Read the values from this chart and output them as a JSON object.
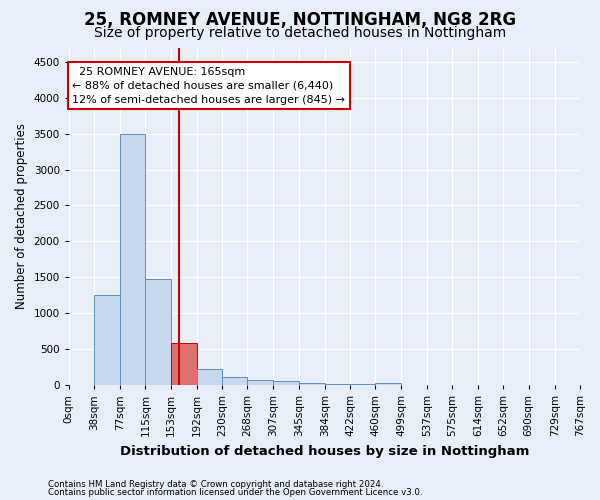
{
  "title": "25, ROMNEY AVENUE, NOTTINGHAM, NG8 2RG",
  "subtitle": "Size of property relative to detached houses in Nottingham",
  "xlabel": "Distribution of detached houses by size in Nottingham",
  "ylabel": "Number of detached properties",
  "footer_line1": "Contains HM Land Registry data © Crown copyright and database right 2024.",
  "footer_line2": "Contains public sector information licensed under the Open Government Licence v3.0.",
  "bins": [
    0,
    38,
    77,
    115,
    153,
    192,
    230,
    268,
    307,
    345,
    384,
    422,
    460,
    499,
    537,
    575,
    614,
    652,
    690,
    729,
    767
  ],
  "bar_heights": [
    5,
    1250,
    3500,
    1480,
    580,
    220,
    110,
    75,
    50,
    30,
    20,
    10,
    25,
    0,
    0,
    0,
    0,
    0,
    0,
    0
  ],
  "bar_color": "#c8d8ec",
  "bar_edge_color": "#6090b8",
  "highlight_bar_color": "#e07070",
  "highlight_bar_edge_color": "#cc0000",
  "vline_x": 165,
  "vline_color": "#cc0000",
  "annotation_text": "  25 ROMNEY AVENUE: 165sqm  \n← 88% of detached houses are smaller (6,440)\n12% of semi-detached houses are larger (845) →",
  "annotation_box_color": "#ffffff",
  "annotation_box_edge_color": "#cc0000",
  "ylim": [
    0,
    4700
  ],
  "yticks": [
    0,
    500,
    1000,
    1500,
    2000,
    2500,
    3000,
    3500,
    4000,
    4500
  ],
  "bg_color": "#e8eef8",
  "plot_bg_color": "#e8eef8",
  "grid_color": "#ffffff",
  "title_fontsize": 12,
  "subtitle_fontsize": 10,
  "ylabel_fontsize": 8.5,
  "xlabel_fontsize": 9.5,
  "tick_fontsize": 7.5,
  "annotation_fontsize": 8
}
